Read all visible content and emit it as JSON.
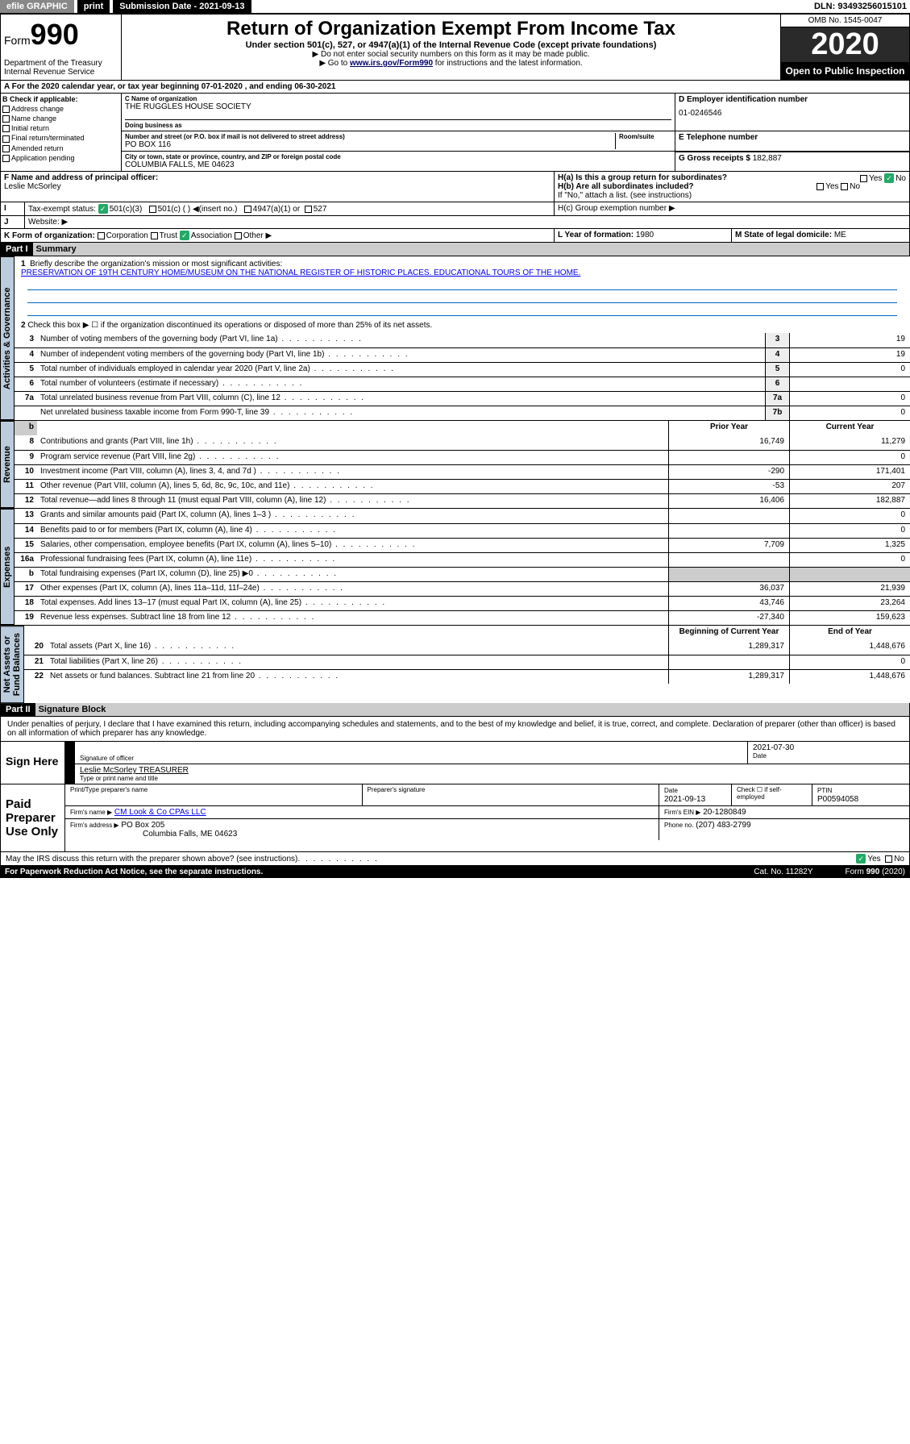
{
  "topbar": {
    "efile": "efile GRAPHIC",
    "print": "print",
    "submission": "Submission Date - 2021-09-13",
    "dln": "DLN: 93493256015101"
  },
  "header": {
    "form_label": "Form",
    "form_num": "990",
    "dept": "Department of the Treasury\nInternal Revenue Service",
    "title": "Return of Organization Exempt From Income Tax",
    "sub1": "Under section 501(c), 527, or 4947(a)(1) of the Internal Revenue Code (except private foundations)",
    "sub2": "▶ Do not enter social security numbers on this form as it may be made public.",
    "sub3_pre": "▶ Go to ",
    "sub3_link": "www.irs.gov/Form990",
    "sub3_post": " for instructions and the latest information.",
    "omb": "OMB No. 1545-0047",
    "year": "2020",
    "open_pub": "Open to Public Inspection"
  },
  "band_a": "A For the 2020 calendar year, or tax year beginning 07-01-2020     , and ending 06-30-2021",
  "block_b": {
    "title": "B Check if applicable:",
    "items": [
      "Address change",
      "Name change",
      "Initial return",
      "Final return/terminated",
      "Amended return",
      "Application pending"
    ]
  },
  "block_c": {
    "name_label": "C Name of organization",
    "name": "THE RUGGLES HOUSE SOCIETY",
    "dba_label": "Doing business as",
    "addr_label": "Number and street (or P.O. box if mail is not delivered to street address)",
    "room_label": "Room/suite",
    "addr": "PO BOX 116",
    "city_label": "City or town, state or province, country, and ZIP or foreign postal code",
    "city": "COLUMBIA FALLS, ME   04623"
  },
  "block_d": {
    "label": "D Employer identification number",
    "val": "01-0246546"
  },
  "block_e": {
    "label": "E Telephone number",
    "val": ""
  },
  "block_g": {
    "label": "G Gross receipts $",
    "val": "182,887"
  },
  "block_f": {
    "label": "F Name and address of principal officer:",
    "name": "Leslie McSorley"
  },
  "block_h": {
    "ha": "H(a)  Is this a group return for subordinates?",
    "hb": "H(b)  Are all subordinates included?",
    "hb_note": "If \"No,\" attach a list. (see instructions)",
    "hc": "H(c)  Group exemption number ▶",
    "yes": "Yes",
    "no": "No"
  },
  "row_i": {
    "label": "I",
    "text": "Tax-exempt status:",
    "c3": "501(c)(3)",
    "c": "501(c) (   ) ◀(insert no.)",
    "a": "4947(a)(1) or",
    "s": "527"
  },
  "row_j": {
    "label": "J",
    "text": "Website: ▶"
  },
  "row_k": {
    "label": "K Form of organization:",
    "corp": "Corporation",
    "trust": "Trust",
    "assoc": "Association",
    "other": "Other ▶"
  },
  "row_l": {
    "label": "L Year of formation:",
    "val": "1980"
  },
  "row_m": {
    "label": "M State of legal domicile:",
    "val": "ME"
  },
  "part1": {
    "hdr": "Part I",
    "title": "Summary"
  },
  "summary": {
    "l1_label": "1",
    "l1": "Briefly describe the organization's mission or most significant activities:",
    "l1_text": "PRESERVATION OF 19TH CENTURY HOME/MUSEUM ON THE NATIONAL REGISTER OF HISTORIC PLACES. EDUCATIONAL TOURS OF THE HOME.",
    "l2_label": "2",
    "l2": "Check this box ▶ ☐  if the organization discontinued its operations or disposed of more than 25% of its net assets.",
    "prior_hdr": "Prior Year",
    "curr_hdr": "Current Year",
    "begin_hdr": "Beginning of Current Year",
    "end_hdr": "End of Year"
  },
  "lines_single": [
    {
      "n": "3",
      "d": "Number of voting members of the governing body (Part VI, line 1a)",
      "box": "3",
      "v": "19"
    },
    {
      "n": "4",
      "d": "Number of independent voting members of the governing body (Part VI, line 1b)",
      "box": "4",
      "v": "19"
    },
    {
      "n": "5",
      "d": "Total number of individuals employed in calendar year 2020 (Part V, line 2a)",
      "box": "5",
      "v": "0"
    },
    {
      "n": "6",
      "d": "Total number of volunteers (estimate if necessary)",
      "box": "6",
      "v": ""
    },
    {
      "n": "7a",
      "d": "Total unrelated business revenue from Part VIII, column (C), line 12",
      "box": "7a",
      "v": "0"
    },
    {
      "n": "",
      "d": "Net unrelated business taxable income from Form 990-T, line 39",
      "box": "7b",
      "v": "0"
    }
  ],
  "lines_rev": [
    {
      "n": "8",
      "d": "Contributions and grants (Part VIII, line 1h)",
      "p": "16,749",
      "c": "11,279"
    },
    {
      "n": "9",
      "d": "Program service revenue (Part VIII, line 2g)",
      "p": "",
      "c": "0"
    },
    {
      "n": "10",
      "d": "Investment income (Part VIII, column (A), lines 3, 4, and 7d )",
      "p": "-290",
      "c": "171,401"
    },
    {
      "n": "11",
      "d": "Other revenue (Part VIII, column (A), lines 5, 6d, 8c, 9c, 10c, and 11e)",
      "p": "-53",
      "c": "207"
    },
    {
      "n": "12",
      "d": "Total revenue—add lines 8 through 11 (must equal Part VIII, column (A), line 12)",
      "p": "16,406",
      "c": "182,887"
    }
  ],
  "lines_exp": [
    {
      "n": "13",
      "d": "Grants and similar amounts paid (Part IX, column (A), lines 1–3 )",
      "p": "",
      "c": "0"
    },
    {
      "n": "14",
      "d": "Benefits paid to or for members (Part IX, column (A), line 4)",
      "p": "",
      "c": "0"
    },
    {
      "n": "15",
      "d": "Salaries, other compensation, employee benefits (Part IX, column (A), lines 5–10)",
      "p": "7,709",
      "c": "1,325"
    },
    {
      "n": "16a",
      "d": "Professional fundraising fees (Part IX, column (A), line 11e)",
      "p": "",
      "c": "0"
    },
    {
      "n": "b",
      "d": "Total fundraising expenses (Part IX, column (D), line 25) ▶0",
      "p": "—",
      "c": "—"
    },
    {
      "n": "17",
      "d": "Other expenses (Part IX, column (A), lines 11a–11d, 11f–24e)",
      "p": "36,037",
      "c": "21,939"
    },
    {
      "n": "18",
      "d": "Total expenses. Add lines 13–17 (must equal Part IX, column (A), line 25)",
      "p": "43,746",
      "c": "23,264"
    },
    {
      "n": "19",
      "d": "Revenue less expenses. Subtract line 18 from line 12",
      "p": "-27,340",
      "c": "159,623"
    }
  ],
  "lines_net": [
    {
      "n": "20",
      "d": "Total assets (Part X, line 16)",
      "p": "1,289,317",
      "c": "1,448,676"
    },
    {
      "n": "21",
      "d": "Total liabilities (Part X, line 26)",
      "p": "",
      "c": "0"
    },
    {
      "n": "22",
      "d": "Net assets or fund balances. Subtract line 21 from line 20",
      "p": "1,289,317",
      "c": "1,448,676"
    }
  ],
  "vtabs": {
    "gov": "Activities & Governance",
    "rev": "Revenue",
    "exp": "Expenses",
    "net": "Net Assets or\nFund Balances"
  },
  "part2": {
    "hdr": "Part II",
    "title": "Signature Block",
    "decl": "Under penalties of perjury, I declare that I have examined this return, including accompanying schedules and statements, and to the best of my knowledge and belief, it is true, correct, and complete. Declaration of preparer (other than officer) is based on all information of which preparer has any knowledge."
  },
  "sign": {
    "side": "Sign Here",
    "sig_of": "Signature of officer",
    "date": "2021-07-30",
    "date_lbl": "Date",
    "name": "Leslie McSorley TREASURER",
    "name_lbl": "Type or print name and title"
  },
  "paid": {
    "side": "Paid Preparer Use Only",
    "h1": "Print/Type preparer's name",
    "h2": "Preparer's signature",
    "h3": "Date",
    "h3v": "2021-09-13",
    "h4": "Check ☐ if self-employed",
    "h5": "PTIN",
    "h5v": "P00594058",
    "firm_name_lbl": "Firm's name    ▶",
    "firm_name": "CM Look & Co CPAs LLC",
    "firm_ein_lbl": "Firm's EIN ▶",
    "firm_ein": "20-1280849",
    "firm_addr_lbl": "Firm's address ▶",
    "firm_addr": "PO Box 205",
    "firm_addr2": "Columbia Falls, ME  04623",
    "phone_lbl": "Phone no.",
    "phone": "(207) 483-2799"
  },
  "discuss": "May the IRS discuss this return with the preparer shown above? (see instructions)",
  "discuss_yes": "Yes",
  "discuss_no": "No",
  "footer": {
    "pra": "For Paperwork Reduction Act Notice, see the separate instructions.",
    "cat": "Cat. No. 11282Y",
    "form": "Form 990 (2020)"
  },
  "colors": {
    "link": "#0000ee",
    "vtab": "#b8cde0",
    "check": "#22aa66"
  }
}
